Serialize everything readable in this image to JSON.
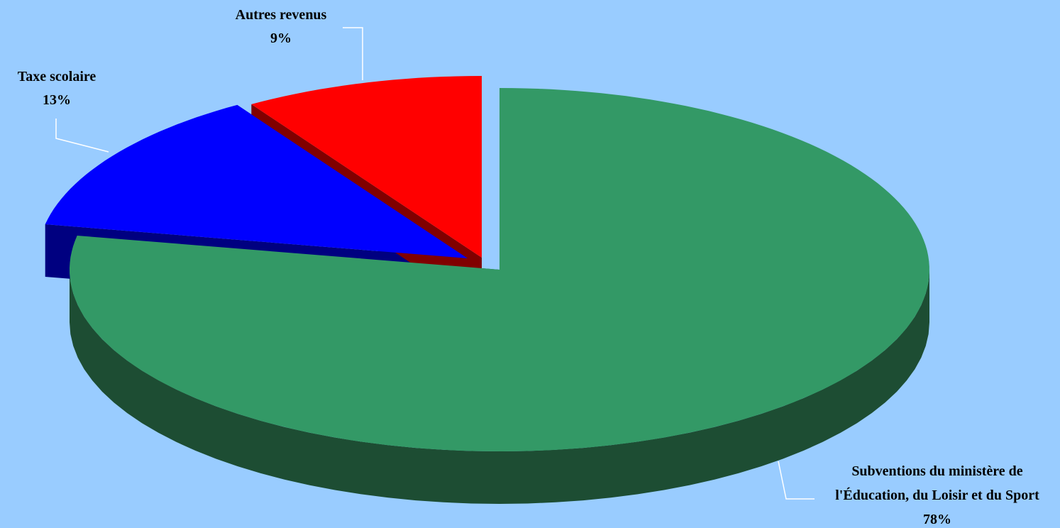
{
  "chart_data": {
    "type": "pie",
    "title": "",
    "three_d": true,
    "exploded": true,
    "legend": "none",
    "background_color": "#99ccff",
    "slices": [
      {
        "label_lines": [
          "Subventions du ministère de",
          "l'Éducation, du Loisir et du Sport"
        ],
        "value": 78,
        "value_label": "78%",
        "color": "#339966",
        "side_color": "#1d4d33"
      },
      {
        "label_lines": [
          "Taxe scolaire"
        ],
        "value": 13,
        "value_label": "13%",
        "color": "#0000ff",
        "side_color": "#000080"
      },
      {
        "label_lines": [
          "Autres revenus"
        ],
        "value": 9,
        "value_label": "9%",
        "color": "#ff0000",
        "side_color": "#800000"
      }
    ]
  }
}
